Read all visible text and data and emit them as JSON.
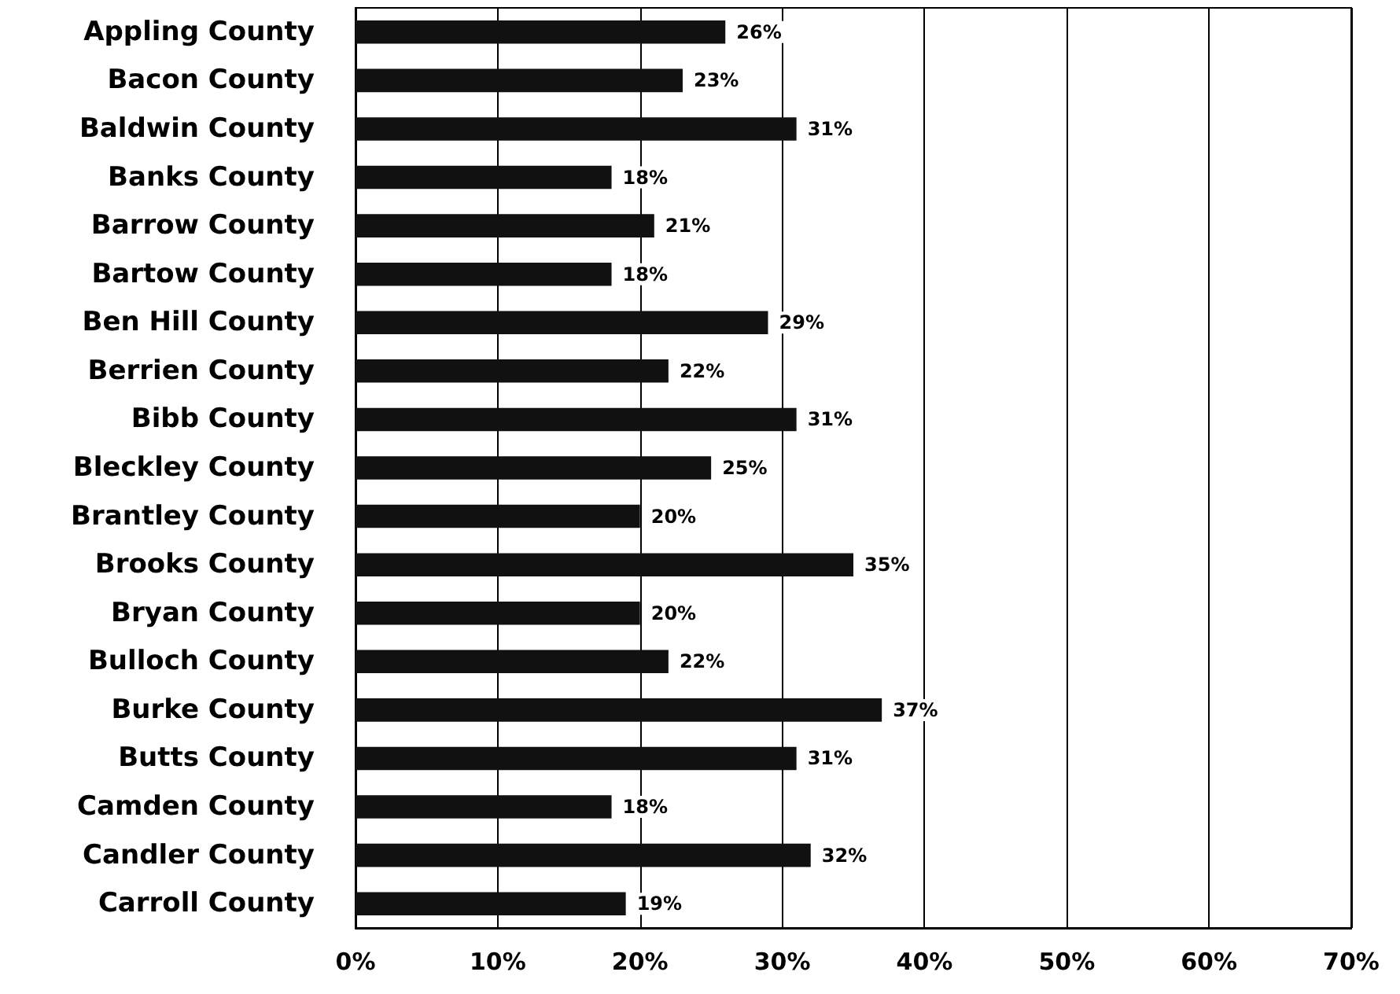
{
  "chart_data": {
    "type": "bar",
    "orientation": "horizontal",
    "categories": [
      "Appling County",
      "Bacon County",
      "Baldwin County",
      "Banks County",
      "Barrow County",
      "Bartow County",
      "Ben Hill County",
      "Berrien County",
      "Bibb County",
      "Bleckley County",
      "Brantley County",
      "Brooks County",
      "Bryan County",
      "Bulloch County",
      "Burke County",
      "Butts County",
      "Camden County",
      "Candler County",
      "Carroll County"
    ],
    "values": [
      26,
      23,
      31,
      18,
      21,
      18,
      29,
      22,
      31,
      25,
      20,
      35,
      20,
      22,
      37,
      31,
      18,
      32,
      19
    ],
    "value_labels": [
      "26%",
      "23%",
      "31%",
      "18%",
      "21%",
      "18%",
      "29%",
      "22%",
      "31%",
      "25%",
      "20%",
      "35%",
      "20%",
      "22%",
      "37%",
      "31%",
      "18%",
      "32%",
      "19%"
    ],
    "color": "#111111",
    "xlim": [
      0,
      70
    ],
    "xticks": [
      {
        "value": 0,
        "label": "0%"
      },
      {
        "value": 10,
        "label": "10%"
      },
      {
        "value": 20,
        "label": "20%"
      },
      {
        "value": 30,
        "label": "30%"
      },
      {
        "value": 40,
        "label": "40%"
      },
      {
        "value": 50,
        "label": "50%"
      },
      {
        "value": 60,
        "label": "60%"
      },
      {
        "value": 70,
        "label": "70%"
      }
    ],
    "grid": "x"
  }
}
